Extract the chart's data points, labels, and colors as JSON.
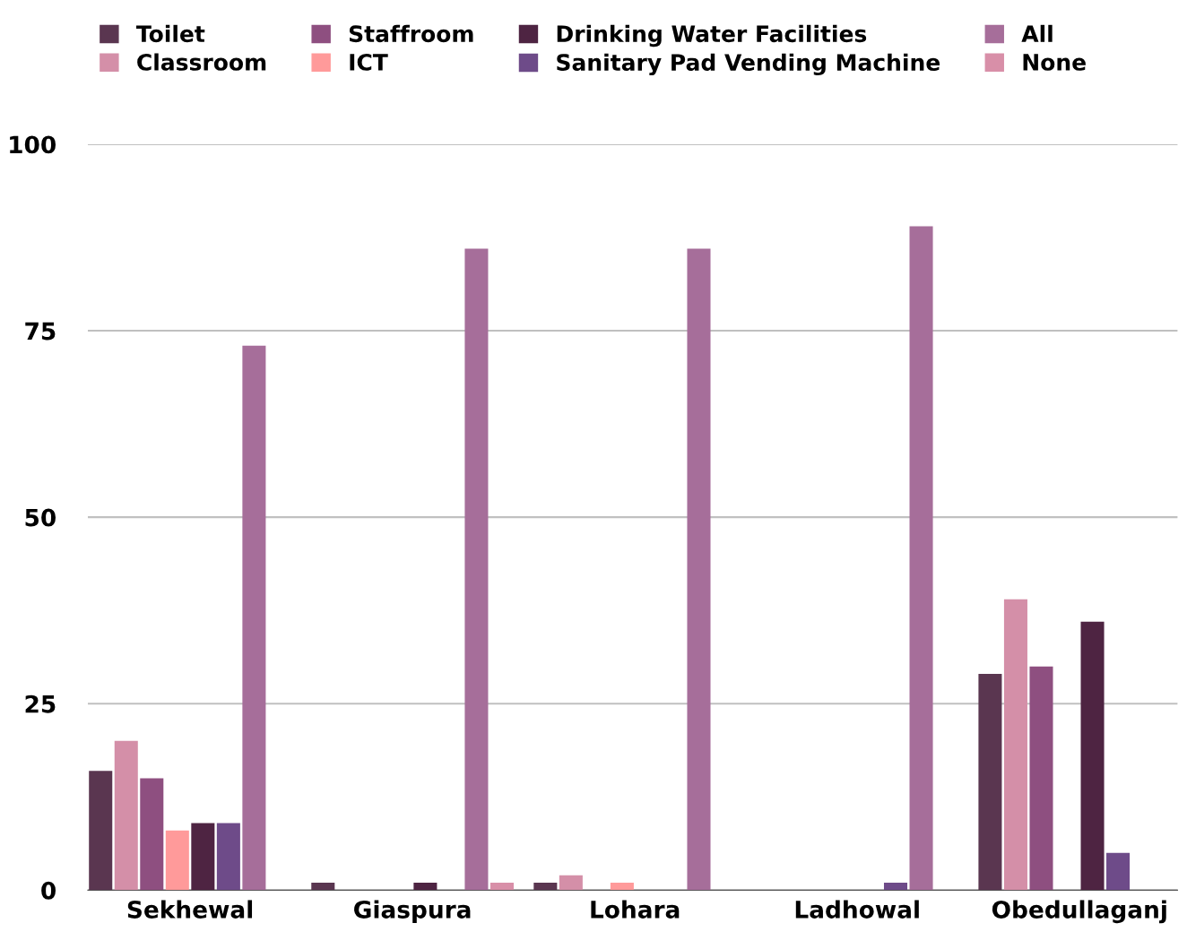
{
  "chart_data": {
    "type": "bar",
    "categories": [
      "Sekhewal",
      "Giaspura",
      "Lohara",
      "Ladhowal",
      "Obedullaganj"
    ],
    "series": [
      {
        "name": "Toilet",
        "color": "#5a3650",
        "values": [
          16,
          1,
          1,
          0,
          29
        ]
      },
      {
        "name": "Classroom",
        "color": "#d48fa8",
        "values": [
          20,
          0,
          2,
          0,
          39
        ]
      },
      {
        "name": "Staffroom",
        "color": "#8e4f80",
        "values": [
          15,
          0,
          0,
          0,
          30
        ]
      },
      {
        "name": "ICT",
        "color": "#ff9a9a",
        "values": [
          8,
          0,
          1,
          0,
          0
        ]
      },
      {
        "name": "Drinking Water Facilities",
        "color": "#4e2442",
        "values": [
          9,
          1,
          0,
          0,
          36
        ]
      },
      {
        "name": "Sanitary Pad Vending Machine",
        "color": "#6e4b89",
        "values": [
          9,
          0,
          0,
          1,
          5
        ]
      },
      {
        "name": "All",
        "color": "#a66e9a",
        "values": [
          73,
          86,
          86,
          89,
          0
        ]
      },
      {
        "name": "None",
        "color": "#d88fa8",
        "values": [
          0,
          1,
          0,
          0,
          0
        ]
      }
    ],
    "ylim": [
      0,
      100
    ],
    "yticks": [
      0,
      25,
      50,
      75,
      100
    ],
    "grid": "y",
    "legend": "top"
  }
}
